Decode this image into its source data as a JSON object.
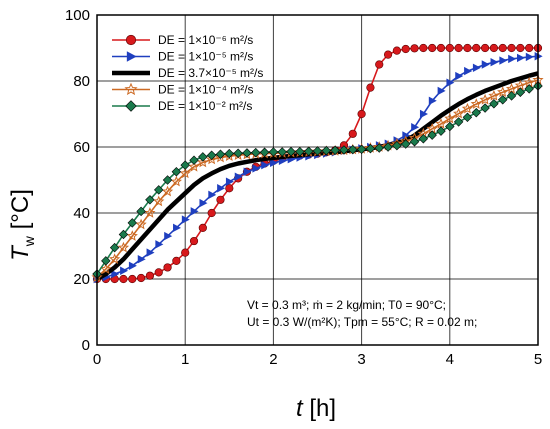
{
  "chart_data": {
    "type": "line",
    "xlim": [
      0,
      5
    ],
    "ylim": [
      0,
      100
    ],
    "x_ticks": [
      "0",
      "1",
      "2",
      "3",
      "4",
      "5"
    ],
    "y_ticks": [
      "0",
      "20",
      "40",
      "60",
      "80",
      "100"
    ],
    "xlabel": {
      "main": "t",
      "unit": "[h]"
    },
    "ylabel": {
      "main": "T",
      "sub": "w",
      "unit": "[°C]"
    },
    "grid": true,
    "legend_position": "top-left",
    "x": [
      0,
      0.1,
      0.2,
      0.3,
      0.4,
      0.5,
      0.6,
      0.7,
      0.8,
      0.9,
      1.0,
      1.1,
      1.2,
      1.3,
      1.4,
      1.5,
      1.6,
      1.7,
      1.8,
      1.9,
      2.0,
      2.1,
      2.2,
      2.3,
      2.4,
      2.5,
      2.6,
      2.7,
      2.8,
      2.9,
      3.0,
      3.1,
      3.2,
      3.3,
      3.4,
      3.5,
      3.6,
      3.7,
      3.8,
      3.9,
      4.0,
      4.1,
      4.2,
      4.3,
      4.4,
      4.5,
      4.6,
      4.7,
      4.8,
      4.9,
      5.0
    ],
    "series": [
      {
        "name": "DE = 1×10⁻⁶ m²/s",
        "color": "#d7191c",
        "marker": "circle",
        "values": [
          20,
          20,
          20,
          20,
          20,
          20.3,
          21,
          22,
          23.5,
          25.5,
          28,
          31.5,
          35.5,
          40,
          44,
          47.5,
          50.5,
          52.5,
          54,
          55,
          55.8,
          56.5,
          57,
          57.4,
          57.7,
          58,
          58.4,
          59,
          60.5,
          64,
          70,
          78,
          85,
          88,
          89.2,
          89.7,
          89.9,
          90,
          90,
          90,
          90,
          90,
          90,
          90,
          90,
          90,
          90,
          90,
          90,
          90,
          90
        ]
      },
      {
        "name": "DE = 1×10⁻⁵ m²/s",
        "color": "#1f3fbf",
        "marker": "triangle-right",
        "values": [
          20,
          20.5,
          21.5,
          22.5,
          24,
          26,
          28,
          30.5,
          33,
          35.5,
          38,
          40.5,
          43,
          45.5,
          47.5,
          49.5,
          51,
          52.5,
          53.5,
          54.5,
          55.2,
          55.8,
          56.3,
          56.8,
          57.2,
          57.6,
          58,
          58.4,
          58.8,
          59.2,
          59.6,
          60,
          60.5,
          61,
          62,
          63.5,
          66,
          70,
          74,
          77,
          79.5,
          81.5,
          83,
          84,
          85,
          85.7,
          86.2,
          86.7,
          87,
          87.3,
          87.5
        ]
      },
      {
        "name": "DE = 3.7×10⁻⁵ m²/s",
        "color": "#000000",
        "marker": "none",
        "values": [
          20,
          21.5,
          23.5,
          26,
          29,
          32,
          35,
          38,
          41,
          43.5,
          46,
          48.5,
          50.5,
          52,
          53.3,
          54.3,
          55,
          55.5,
          56,
          56.4,
          56.7,
          57,
          57.3,
          57.5,
          57.8,
          58,
          58.2,
          58.4,
          58.7,
          59,
          59.3,
          59.6,
          60,
          60.5,
          61.2,
          62,
          63.5,
          65.5,
          67.5,
          69.5,
          71.3,
          73,
          74.5,
          75.8,
          77,
          78,
          79,
          80,
          80.8,
          81.6,
          82.3
        ]
      },
      {
        "name": "DE = 1×10⁻⁴ m²/s",
        "color": "#cc6a24",
        "marker": "star",
        "values": [
          20.5,
          23,
          26,
          29.5,
          33,
          36.5,
          40,
          43.5,
          46.5,
          49.5,
          52,
          54,
          55.3,
          56.2,
          56.8,
          57.2,
          57.5,
          57.7,
          57.9,
          58,
          58.1,
          58.2,
          58.3,
          58.4,
          58.5,
          58.6,
          58.7,
          58.8,
          59,
          59.2,
          59.4,
          59.7,
          60,
          60.4,
          61,
          61.7,
          62.7,
          64,
          65.5,
          67,
          68.6,
          70.1,
          71.6,
          73,
          74.3,
          75.5,
          76.6,
          77.6,
          78.6,
          79.5,
          80.3
        ]
      },
      {
        "name": "DE = 1×10⁻² m²/s",
        "color": "#1a7a4c",
        "marker": "diamond",
        "values": [
          21.5,
          25.5,
          29.5,
          33.5,
          37,
          40.5,
          44,
          47,
          50,
          52.5,
          54.5,
          56,
          57,
          57.5,
          57.8,
          58,
          58.1,
          58.2,
          58.3,
          58.4,
          58.5,
          58.5,
          58.6,
          58.6,
          58.7,
          58.8,
          58.9,
          59,
          59.1,
          59.2,
          59.3,
          59.5,
          59.7,
          60,
          60.4,
          60.9,
          61.6,
          62.5,
          63.6,
          64.8,
          66.2,
          67.6,
          69,
          70.4,
          71.8,
          73.1,
          74.3,
          75.5,
          76.6,
          77.6,
          78.5
        ]
      }
    ],
    "annotations": [
      "Vt = 0.3 m³;  ṁ = 2 kg/min;  T0 = 90°C;",
      "Ut = 0.3 W/(m²K);  Tpm = 55°C;  R = 0.02 m;"
    ]
  }
}
